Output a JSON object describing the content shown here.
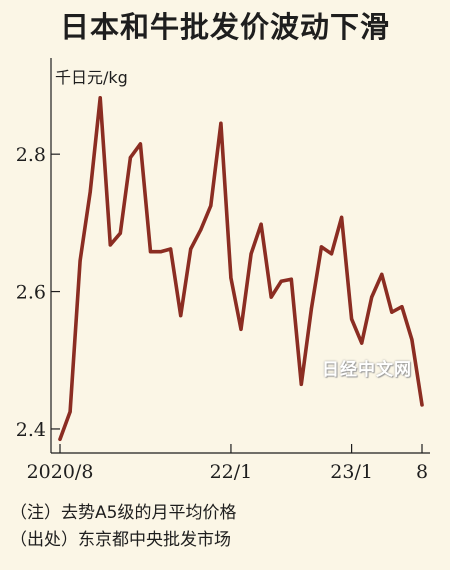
{
  "chart_data": {
    "type": "line",
    "title": "日本和牛批发价波动下滑",
    "ylabel": "千日元/kg",
    "xlabel": "",
    "ylim": [
      2.365,
      2.94
    ],
    "y_ticks": [
      2.4,
      2.6,
      2.8
    ],
    "y_tick_labels": [
      "2.4",
      "2.6",
      "2.8"
    ],
    "x_tick_labels": [
      "2020/8",
      "22/1",
      "23/1",
      "8"
    ],
    "x_tick_index": [
      0,
      17,
      29,
      36
    ],
    "grid": false,
    "legend": "none",
    "color": "#8b2d22",
    "x": [
      "2020/8",
      "2020/9",
      "2020/10",
      "2020/11",
      "2020/12",
      "2021/1",
      "2021/2",
      "2021/3",
      "2021/4",
      "2021/5",
      "2021/6",
      "2021/7",
      "2021/8",
      "2021/9",
      "2021/10",
      "2021/11",
      "2021/12",
      "2022/1",
      "2022/2",
      "2022/3",
      "2022/4",
      "2022/5",
      "2022/6",
      "2022/7",
      "2022/8",
      "2022/9",
      "2022/10",
      "2022/11",
      "2022/12",
      "2023/1",
      "2023/2",
      "2023/3",
      "2023/4",
      "2023/5",
      "2023/6",
      "2023/7",
      "2023/8"
    ],
    "values": [
      2.385,
      2.425,
      2.645,
      2.745,
      2.882,
      2.668,
      2.685,
      2.795,
      2.815,
      2.658,
      2.658,
      2.662,
      2.565,
      2.662,
      2.69,
      2.725,
      2.845,
      2.62,
      2.545,
      2.655,
      2.698,
      2.592,
      2.615,
      2.618,
      2.465,
      2.575,
      2.665,
      2.655,
      2.708,
      2.56,
      2.525,
      2.592,
      2.625,
      2.57,
      2.578,
      2.53,
      2.435
    ]
  },
  "watermark": "日经中文网",
  "notes": {
    "note": "（注）去势A5级的月平均价格",
    "source": "（出处）东京都中央批发市场"
  }
}
